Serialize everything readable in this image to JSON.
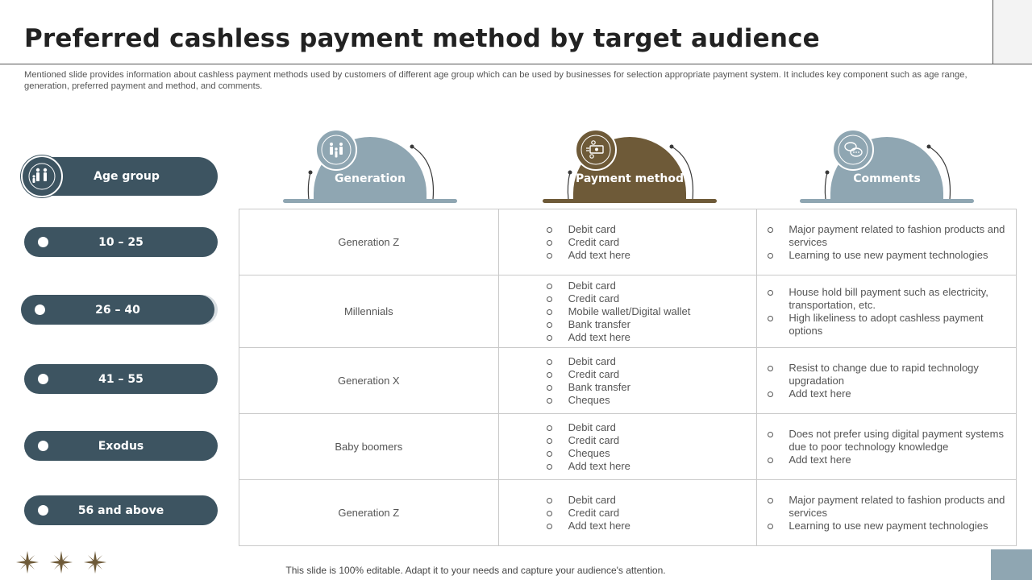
{
  "title": "Preferred cashless payment method by target audience",
  "subtitle": "Mentioned slide provides information about cashless payment methods used by customers of different age group which can be used by businesses for selection appropriate payment system. It includes key component such as age range, generation, preferred payment and method, and comments.",
  "age_group_label": "Age group",
  "age_ranges": [
    "10 – 25",
    "26 – 40",
    "41 – 55",
    "Exodus",
    "56 and above"
  ],
  "headers": {
    "generation": "Generation",
    "payment_method": "Payment method",
    "comments": "Comments"
  },
  "colors": {
    "pill": "#3d5461",
    "generation_header": "#8fa6b2",
    "payment_header": "#6e5a38",
    "comments_header": "#8fa6b2"
  },
  "icons": {
    "age_group": "people-family-icon",
    "generation": "people-group-icon",
    "payment_method": "money-gear-icon",
    "comments": "chat-bubbles-icon",
    "decoration": "star-icon"
  },
  "rows": [
    {
      "generation": "Generation  Z",
      "payment": [
        "Debit card",
        "Credit card",
        "Add text here"
      ],
      "comments": [
        "Major payment related to fashion  products and services",
        "Learning to use new payment technologies"
      ]
    },
    {
      "generation": "Millennials",
      "payment": [
        "Debit card",
        "Credit card",
        "Mobile wallet/Digital wallet",
        "Bank transfer",
        "Add text here"
      ],
      "comments": [
        "House hold bill payment such as electricity, transportation, etc.",
        "High likeliness to adopt cashless payment options"
      ]
    },
    {
      "generation": "Generation  X",
      "payment": [
        "Debit card",
        "Credit card",
        "Bank transfer",
        "Cheques"
      ],
      "comments": [
        "Resist to change due to rapid technology upgradation",
        "Add text here"
      ]
    },
    {
      "generation": "Baby boomers",
      "payment": [
        "Debit card",
        "Credit card",
        "Cheques",
        "Add text here"
      ],
      "comments": [
        "Does not prefer using digital payment systems due to poor technology knowledge",
        "Add text here"
      ]
    },
    {
      "generation": "Generation  Z",
      "payment": [
        "Debit card",
        "Credit card",
        "Add text here"
      ],
      "comments": [
        "Major payment related to fashion  products and services",
        "Learning to use new payment technologies"
      ]
    }
  ],
  "footer": "This slide is 100% editable. Adapt it to your needs and capture your audience's attention."
}
